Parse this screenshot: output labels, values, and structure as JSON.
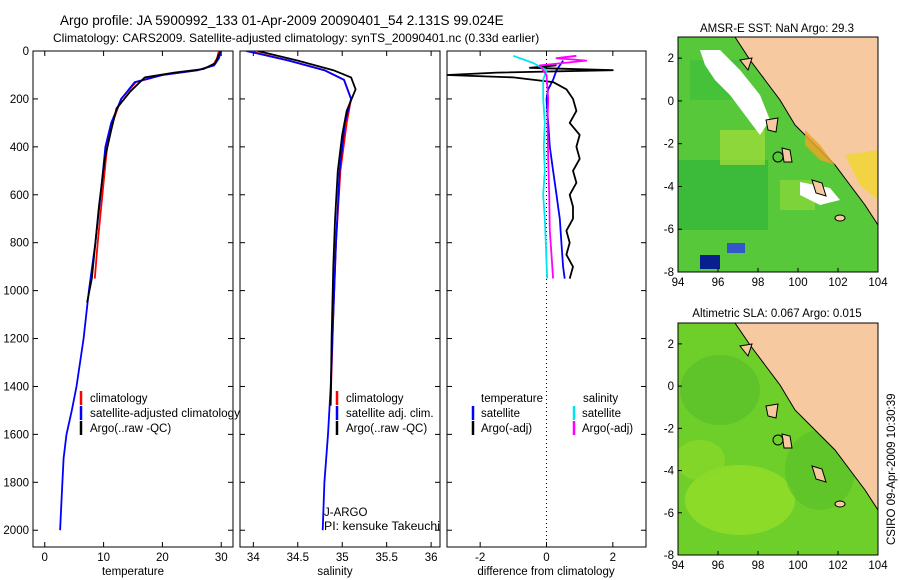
{
  "header": {
    "title_line1": "Argo profile: JA 5900992_133 01-Apr-2009 20090401_54 2.131S 99.024E",
    "title_line2": "Climatology: CARS2009. Satellite-adjusted climatology: synTS_20090401.nc (0.33d earlier)"
  },
  "colors": {
    "climatology": "#ff0000",
    "satellite": "#0000ff",
    "argo": "#000000",
    "salinity_satellite": "#00e5ee",
    "salinity_argo": "#ff00ff",
    "land": "#f7c9a0",
    "ocean_green": "#56c83a"
  },
  "panels": {
    "temperature": {
      "xlabel": "temperature",
      "legend": [
        "climatology",
        "satellite-adjusted climatology",
        "Argo(..raw -QC)"
      ]
    },
    "salinity": {
      "xlabel": "salinity",
      "legend": [
        "climatology",
        "satellite adj. clim.",
        "Argo(..raw -QC)"
      ],
      "annotation_line1": "J-ARGO",
      "annotation_line2": "PI: kensuke Takeuchi"
    },
    "difference": {
      "xlabel": "difference from climatology",
      "legend_left_title": "temperature",
      "legend_left": [
        "satellite",
        "Argo(-adj)"
      ],
      "legend_right_title": "salinity",
      "legend_right": [
        "satellite",
        "Argo(-adj)"
      ]
    },
    "sst_map": {
      "title": "AMSR-E SST: NaN Argo: 29.3"
    },
    "sla_map": {
      "title": "Altimetric SLA: 0.067 Argo: 0.015"
    },
    "credit": "CSIRO 09-Apr-2009 10:30:39"
  },
  "chart_data": [
    {
      "type": "line",
      "name": "temperature profile",
      "xlabel": "temperature",
      "xlim": [
        -2,
        32
      ],
      "ylim": [
        2070,
        0
      ],
      "xticks": [
        0,
        10,
        20,
        30
      ],
      "yticks": [
        0,
        200,
        400,
        600,
        800,
        1000,
        1200,
        1400,
        1600,
        1800,
        2000
      ],
      "series": [
        {
          "name": "climatology",
          "color": "#ff0000",
          "x": [
            29.6,
            29.3,
            28.6,
            26,
            20,
            15.5,
            13,
            11.5,
            10.6,
            9.8,
            9,
            8.5
          ],
          "y": [
            0,
            30,
            60,
            80,
            100,
            130,
            200,
            300,
            400,
            600,
            800,
            950
          ]
        },
        {
          "name": "satellite-adjusted climatology",
          "color": "#0000ff",
          "x": [
            30,
            29.6,
            28.8,
            26,
            20,
            15.3,
            13,
            11.3,
            10.3,
            9.5,
            8.6,
            7.5,
            6.6,
            5.4,
            4.6,
            3.7,
            3.2,
            2.9,
            2.6
          ],
          "y": [
            0,
            30,
            60,
            80,
            100,
            130,
            200,
            300,
            400,
            600,
            800,
            1000,
            1200,
            1400,
            1500,
            1600,
            1700,
            1850,
            2000
          ]
        },
        {
          "name": "Argo(..raw -QC)",
          "color": "#000000",
          "x": [
            29.9,
            29.5,
            29,
            27,
            22,
            17,
            14.5,
            12.2,
            11.3,
            10.2,
            9.2,
            8.6,
            8,
            7.2
          ],
          "y": [
            0,
            20,
            50,
            75,
            90,
            110,
            170,
            240,
            330,
            450,
            650,
            800,
            950,
            1050
          ]
        }
      ]
    },
    {
      "type": "line",
      "name": "salinity profile",
      "xlabel": "salinity",
      "xlim": [
        33.85,
        36.1
      ],
      "ylim": [
        2070,
        0
      ],
      "xticks": [
        34,
        34.5,
        35,
        35.5,
        36
      ],
      "series": [
        {
          "name": "climatology",
          "color": "#ff0000",
          "x": [
            33.95,
            34.4,
            34.8,
            35.02,
            35.1,
            35.05,
            34.98,
            34.93,
            34.9,
            34.87
          ],
          "y": [
            0,
            40,
            80,
            120,
            200,
            300,
            500,
            800,
            1100,
            1450
          ]
        },
        {
          "name": "satellite adj. clim.",
          "color": "#0000ff",
          "x": [
            33.92,
            34.4,
            34.8,
            35.02,
            35.1,
            35.03,
            34.97,
            34.93,
            34.9,
            34.87,
            34.84,
            34.8,
            34.78
          ],
          "y": [
            0,
            40,
            80,
            120,
            200,
            300,
            500,
            800,
            1100,
            1400,
            1600,
            1800,
            2000
          ]
        },
        {
          "name": "Argo(..raw -QC)",
          "color": "#000000",
          "x": [
            34.05,
            34.5,
            34.9,
            35.1,
            35.15,
            35.05,
            35.0,
            34.95,
            34.92,
            34.9,
            34.88,
            34.87
          ],
          "y": [
            0,
            40,
            80,
            110,
            160,
            250,
            350,
            500,
            700,
            900,
            1200,
            1480
          ]
        }
      ]
    },
    {
      "type": "line",
      "name": "difference from climatology",
      "xlabel": "difference from climatology",
      "xlim": [
        -3,
        3
      ],
      "ylim": [
        2070,
        0
      ],
      "xticks": [
        -2,
        0,
        2
      ],
      "series": [
        {
          "name": "temperature satellite",
          "color": "#0000ff",
          "x": [
            0.5,
            0.3,
            0.2,
            0.05,
            0.0,
            0.05,
            0.1,
            0.2,
            0.3,
            0.35,
            0.4,
            0.45,
            0.5,
            0.55
          ],
          "y": [
            40,
            80,
            120,
            160,
            200,
            300,
            400,
            500,
            600,
            650,
            700,
            800,
            900,
            950
          ]
        },
        {
          "name": "temperature Argo(-adj)",
          "color": "#000000",
          "x": [
            0.3,
            -0.5,
            2.0,
            -1.5,
            -3.0,
            -1.0,
            0.2,
            0.6,
            0.8,
            0.9,
            0.7,
            1.0,
            0.9,
            1.0,
            0.8,
            0.9,
            0.7,
            0.8,
            0.8,
            0.6,
            0.7,
            0.6,
            0.8,
            0.7
          ],
          "y": [
            60,
            70,
            80,
            90,
            100,
            110,
            130,
            160,
            200,
            250,
            300,
            350,
            400,
            450,
            500,
            550,
            600,
            650,
            700,
            750,
            800,
            850,
            900,
            950
          ]
        },
        {
          "name": "salinity satellite",
          "color": "#00e5ee",
          "x": [
            -1.0,
            -0.4,
            0.0,
            -0.1,
            -0.1,
            -0.05,
            -0.08,
            -0.05,
            -0.1,
            -0.05,
            -0.02,
            0.0,
            0.02
          ],
          "y": [
            20,
            50,
            80,
            120,
            200,
            300,
            400,
            500,
            600,
            700,
            800,
            880,
            950
          ]
        },
        {
          "name": "salinity Argo(-adj)",
          "color": "#ff00ff",
          "x": [
            0.9,
            0.3,
            1.2,
            -0.2,
            0.0,
            0.05,
            0.03,
            0.05,
            0.08,
            0.1,
            0.15,
            0.2
          ],
          "y": [
            20,
            30,
            40,
            60,
            100,
            200,
            300,
            450,
            600,
            750,
            850,
            950
          ]
        }
      ]
    }
  ],
  "map_axes": {
    "xticks": [
      "94",
      "96",
      "98",
      "100",
      "102",
      "104"
    ],
    "yticks": [
      "2",
      "0",
      "-2",
      "-4",
      "-6",
      "-8"
    ]
  }
}
